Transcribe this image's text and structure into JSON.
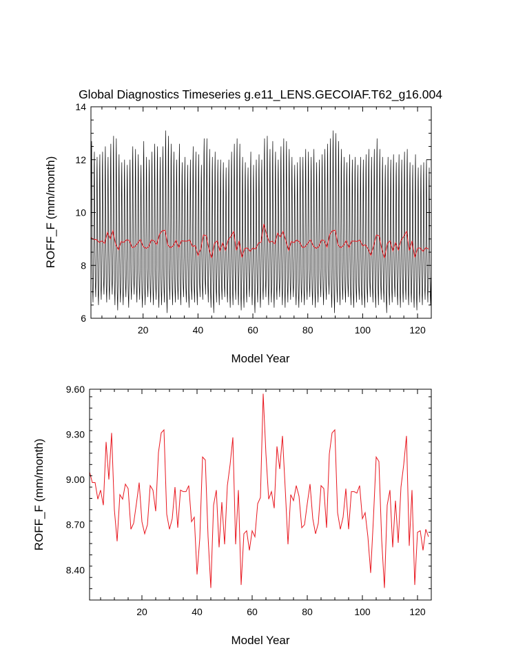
{
  "colors": {
    "monthly": "#000000",
    "annual": "#e8141c",
    "axis": "#000000"
  },
  "chart_data": [
    {
      "type": "line",
      "title": "Global Diagnostics Timeseries g.e11_LENS.GECOIAF.T62_g16.004",
      "xlabel": "Model Year",
      "ylabel": "ROFF_F (mm/month)",
      "xlim": [
        1,
        125
      ],
      "ylim": [
        6,
        14
      ],
      "xticks": [
        20,
        40,
        60,
        80,
        100,
        120
      ],
      "yticks": [
        6,
        8,
        10,
        12,
        14
      ],
      "ytick_labels": [
        "6",
        "8",
        "10",
        "12",
        "14"
      ],
      "series": [
        {
          "kind": "monthly",
          "color": "#000000",
          "peak_values": [
            12.7,
            12.3,
            12.1,
            12.2,
            12.3,
            12.5,
            12.1,
            12.6,
            12.9,
            12.8,
            12.2,
            11.9,
            12.0,
            11.8,
            12.0,
            12.5,
            12.4,
            12.2,
            11.8,
            12.7,
            12.1,
            12.0,
            12.3,
            12.6,
            12.5,
            12.1,
            12.5,
            13.1,
            12.9,
            12.6,
            12.3,
            12.0,
            12.6,
            11.9,
            12.1,
            11.8,
            12.0,
            12.5,
            12.3,
            12.2,
            11.8,
            12.8,
            12.8,
            12.4,
            12.1,
            12.3,
            12.0,
            12.0,
            11.9,
            11.7,
            12.0,
            12.3,
            12.6,
            12.8,
            12.6,
            12.1,
            11.9,
            11.7,
            12.3,
            11.8,
            12.0,
            12.2,
            12.0,
            12.8,
            12.9,
            12.4,
            12.7,
            12.3,
            12.0,
            12.5,
            12.8,
            12.7,
            12.4,
            12.1,
            11.8,
            11.9,
            12.1,
            12.1,
            12.4,
            12.3,
            12.1,
            12.4,
            11.9,
            12.0,
            12.2,
            12.4,
            12.6,
            12.8,
            13.1,
            13.0,
            12.7,
            12.4,
            12.1,
            11.9,
            12.2,
            12.0,
            12.1,
            11.8,
            12.1,
            12.0,
            12.2,
            12.4,
            12.1,
            12.4,
            12.8,
            12.4,
            12.1,
            11.8,
            12.1,
            12.0,
            12.2,
            11.9,
            12.2,
            12.0,
            12.3,
            12.4,
            11.9,
            11.8,
            12.2,
            11.7,
            11.8,
            11.9,
            12.0,
            11.7
          ],
          "trough_values": [
            6.6,
            6.8,
            6.5,
            6.7,
            6.9,
            6.6,
            6.7,
            6.9,
            6.5,
            6.3,
            6.6,
            6.5,
            6.8,
            6.4,
            6.7,
            6.9,
            6.6,
            6.7,
            6.4,
            6.5,
            6.8,
            6.6,
            6.5,
            6.7,
            6.4,
            6.5,
            6.6,
            6.2,
            6.7,
            6.5,
            6.6,
            6.7,
            6.5,
            6.8,
            6.6,
            6.4,
            6.7,
            6.6,
            6.5,
            6.8,
            6.7,
            6.9,
            6.6,
            6.4,
            6.2,
            6.6,
            6.5,
            6.7,
            6.8,
            6.6,
            6.4,
            6.5,
            6.7,
            6.5,
            6.3,
            6.4,
            6.6,
            6.8,
            6.5,
            6.2,
            6.6,
            6.4,
            6.7,
            6.8,
            6.5,
            6.6,
            6.4,
            6.7,
            6.8,
            6.5,
            6.4,
            6.6,
            6.7,
            6.8,
            6.5,
            6.4,
            6.6,
            6.5,
            6.7,
            6.8,
            6.5,
            6.4,
            6.6,
            6.8,
            6.5,
            6.7,
            6.9,
            6.4,
            6.2,
            6.6,
            6.5,
            6.7,
            6.6,
            6.8,
            6.5,
            6.4,
            6.6,
            6.7,
            6.5,
            6.4,
            6.6,
            6.8,
            6.6,
            6.4,
            6.5,
            6.7,
            6.6,
            6.2,
            6.5,
            6.6,
            6.8,
            6.5,
            6.4,
            6.6,
            6.7,
            6.5,
            6.6,
            6.4,
            6.3,
            6.6,
            6.5,
            6.7,
            6.6,
            6.5,
            6.6
          ]
        },
        {
          "kind": "annual",
          "color": "#e8141c",
          "values": [
            9.05,
            8.98,
            8.98,
            8.87,
            8.93,
            8.83,
            9.25,
            9.0,
            9.31,
            8.8,
            8.59,
            8.9,
            8.87,
            8.97,
            8.94,
            8.67,
            8.71,
            8.84,
            8.98,
            8.72,
            8.64,
            8.7,
            8.96,
            8.93,
            8.79,
            9.18,
            9.31,
            9.33,
            8.77,
            8.67,
            8.74,
            8.95,
            8.68,
            8.93,
            8.92,
            8.92,
            8.96,
            8.72,
            8.75,
            8.37,
            8.61,
            9.15,
            9.13,
            8.62,
            8.28,
            8.83,
            8.93,
            8.55,
            8.85,
            8.57,
            8.96,
            9.1,
            9.28,
            8.57,
            8.93,
            8.3,
            8.64,
            8.66,
            8.53,
            8.66,
            8.62,
            8.84,
            8.88,
            9.57,
            9.17,
            8.87,
            8.92,
            8.81,
            9.22,
            9.07,
            9.29,
            8.94,
            8.57,
            8.9,
            8.86,
            8.96,
            8.89,
            8.68,
            8.7,
            8.84,
            8.97,
            8.74,
            8.64,
            8.71,
            8.96,
            8.94,
            8.68,
            9.17,
            9.31,
            9.33,
            8.78,
            8.67,
            8.75,
            8.94,
            8.67,
            8.92,
            8.92,
            8.91,
            8.96,
            8.74,
            8.78,
            8.62,
            8.38,
            8.74,
            9.15,
            9.12,
            8.6,
            8.28,
            8.83,
            8.93,
            8.55,
            8.86,
            8.58,
            8.95,
            9.1,
            9.29,
            8.56,
            8.93,
            8.3,
            8.65,
            8.66,
            8.53,
            8.67,
            8.62
          ]
        }
      ]
    },
    {
      "type": "line",
      "title": "",
      "xlabel": "Model Year",
      "ylabel": "ROFF_F (mm/month)",
      "xlim": [
        1,
        125
      ],
      "ylim": [
        8.2,
        9.6
      ],
      "xticks": [
        20,
        40,
        60,
        80,
        100,
        120
      ],
      "yticks": [
        8.4,
        8.7,
        9.0,
        9.3,
        9.6
      ],
      "ytick_labels": [
        "8.40",
        "8.70",
        "9.00",
        "9.30",
        "9.60"
      ],
      "series": [
        {
          "kind": "annual",
          "color": "#e8141c",
          "values": [
            9.05,
            8.98,
            8.98,
            8.87,
            8.93,
            8.83,
            9.25,
            9.0,
            9.31,
            8.8,
            8.59,
            8.9,
            8.87,
            8.97,
            8.94,
            8.67,
            8.71,
            8.84,
            8.98,
            8.72,
            8.64,
            8.7,
            8.96,
            8.93,
            8.79,
            9.18,
            9.31,
            9.33,
            8.77,
            8.67,
            8.74,
            8.95,
            8.68,
            8.93,
            8.92,
            8.92,
            8.96,
            8.72,
            8.75,
            8.37,
            8.61,
            9.15,
            9.13,
            8.62,
            8.28,
            8.83,
            8.93,
            8.55,
            8.85,
            8.57,
            8.96,
            9.1,
            9.28,
            8.57,
            8.93,
            8.3,
            8.64,
            8.66,
            8.53,
            8.66,
            8.62,
            8.84,
            8.88,
            9.57,
            9.17,
            8.87,
            8.92,
            8.81,
            9.22,
            9.07,
            9.29,
            8.94,
            8.57,
            8.9,
            8.86,
            8.96,
            8.89,
            8.68,
            8.7,
            8.84,
            8.97,
            8.74,
            8.64,
            8.71,
            8.96,
            8.94,
            8.68,
            9.17,
            9.31,
            9.33,
            8.78,
            8.67,
            8.75,
            8.94,
            8.67,
            8.92,
            8.92,
            8.91,
            8.96,
            8.74,
            8.78,
            8.62,
            8.38,
            8.74,
            9.15,
            9.12,
            8.6,
            8.28,
            8.83,
            8.93,
            8.55,
            8.86,
            8.58,
            8.95,
            9.1,
            9.29,
            8.56,
            8.93,
            8.3,
            8.65,
            8.66,
            8.53,
            8.67,
            8.62
          ]
        }
      ]
    }
  ]
}
